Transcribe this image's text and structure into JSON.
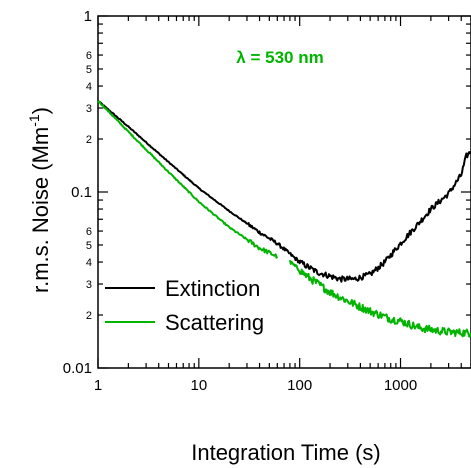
{
  "chart_data": {
    "type": "line",
    "title": "",
    "annotation": "λ = 530 nm",
    "xlabel": "Integration Time (s)",
    "ylabel": "r.m.s. Noise (Mm",
    "ylabel_superscript": "-1",
    "ylabel_suffix": ")",
    "x_scale": "log",
    "y_scale": "log",
    "xlim": [
      1,
      5000
    ],
    "ylim": [
      0.01,
      1
    ],
    "x_major_ticks": [
      {
        "value": 1,
        "label": "1"
      },
      {
        "value": 10,
        "label": "10"
      },
      {
        "value": 100,
        "label": "100"
      },
      {
        "value": 1000,
        "label": "1000"
      }
    ],
    "y_major_ticks": [
      {
        "value": 0.01,
        "label": "0.01"
      },
      {
        "value": 0.1,
        "label": "0.1"
      },
      {
        "value": 1,
        "label": "1"
      }
    ],
    "y_minor_labels": [
      {
        "value": 0.02,
        "label": "2"
      },
      {
        "value": 0.03,
        "label": "3"
      },
      {
        "value": 0.04,
        "label": "4"
      },
      {
        "value": 0.05,
        "label": "5"
      },
      {
        "value": 0.06,
        "label": "6"
      },
      {
        "value": 0.2,
        "label": "2"
      },
      {
        "value": 0.3,
        "label": "3"
      },
      {
        "value": 0.4,
        "label": "4"
      },
      {
        "value": 0.5,
        "label": "5"
      },
      {
        "value": 0.6,
        "label": "6"
      }
    ],
    "grid": false,
    "legend_position": "left, lower-middle",
    "series": [
      {
        "name": "Extinction",
        "color": "#000000",
        "points": [
          [
            1,
            0.33
          ],
          [
            2,
            0.235
          ],
          [
            5,
            0.148
          ],
          [
            10,
            0.105
          ],
          [
            20,
            0.078
          ],
          [
            40,
            0.059
          ],
          [
            60,
            0.051
          ],
          [
            100,
            0.04
          ],
          [
            150,
            0.035
          ],
          [
            250,
            0.032
          ],
          [
            350,
            0.032
          ],
          [
            500,
            0.034
          ],
          [
            700,
            0.04
          ],
          [
            1000,
            0.051
          ],
          [
            1500,
            0.066
          ],
          [
            2000,
            0.08
          ],
          [
            3000,
            0.098
          ],
          [
            4000,
            0.125
          ],
          [
            4500,
            0.16
          ],
          [
            5000,
            0.17
          ]
        ]
      },
      {
        "name": "Scattering",
        "color": "#00b400",
        "segments": [
          [
            [
              1,
              0.33
            ],
            [
              2,
              0.22
            ],
            [
              5,
              0.13
            ],
            [
              10,
              0.088
            ],
            [
              20,
              0.063
            ],
            [
              40,
              0.048
            ],
            [
              60,
              0.043
            ]
          ],
          [
            [
              80,
              0.04
            ],
            [
              120,
              0.033
            ],
            [
              200,
              0.027
            ],
            [
              300,
              0.024
            ],
            [
              500,
              0.021
            ],
            [
              800,
              0.019
            ],
            [
              1000,
              0.0185
            ],
            [
              1500,
              0.017
            ],
            [
              2000,
              0.0165
            ],
            [
              3000,
              0.016
            ],
            [
              5000,
              0.0158
            ]
          ]
        ]
      }
    ]
  }
}
